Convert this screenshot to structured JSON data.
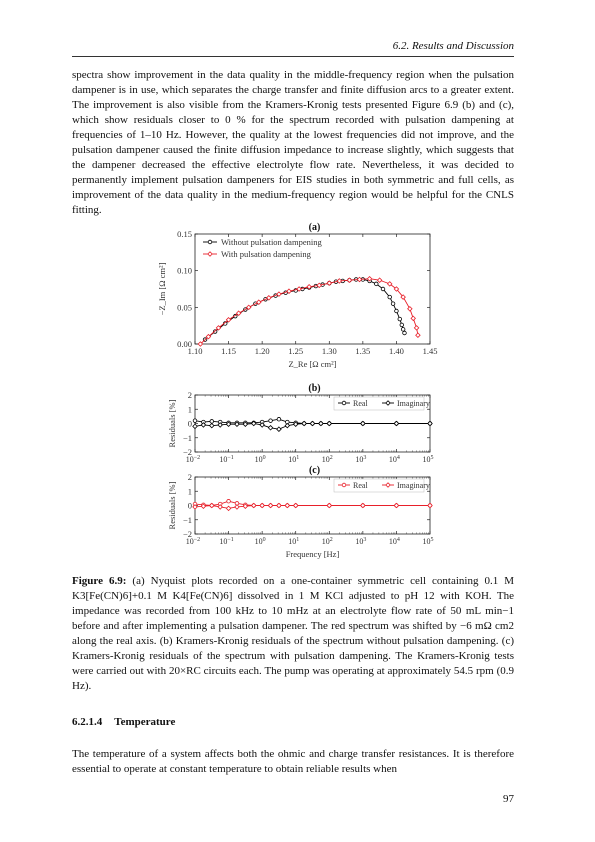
{
  "header": {
    "running_title": "6.2.  Results and Discussion"
  },
  "body": {
    "para1": "spectra show improvement in the data quality in the middle-frequency region when the pulsation dampener is in use, which separates the charge transfer and finite diffusion arcs to a greater extent. The improvement is also visible from the Kramers-Kronig tests presented Figure 6.9 (b) and (c), which show residuals closer to 0 % for the spectrum recorded with pulsation dampening at frequencies of 1–10 Hz. However, the quality at the lowest frequencies did not improve, and the pulsation dampener caused the finite diffusion impedance to increase slightly, which suggests that the dampener decreased the effective electrolyte flow rate. Nevertheless, it was decided to permanently implement pulsation dampeners for EIS studies in both symmetric and full cells, as improvement of the data quality in the medium-frequency region would be helpful for the CNLS fitting.",
    "para2": "The temperature of a system affects both the ohmic and charge transfer resistances. It is therefore essential to operate at constant temperature to obtain reliable results when"
  },
  "figure": {
    "caption_label": "Figure 6.9:",
    "caption_text": "(a) Nyquist plots recorded on a one-container symmetric cell containing 0.1 M K3[Fe(CN)6]+0.1 M K4[Fe(CN)6] dissolved in 1 M KCl adjusted to pH 12 with KOH. The impedance was recorded from 100 kHz to 10 mHz at an electrolyte flow rate of 50 mL min−1 before and after implementing a pulsation dampener. The red spectrum was shifted by −6 mΩ cm2 along the real axis. (b) Kramers-Kronig residuals of the spectrum without pulsation dampening. (c) Kramers-Kronig residuals of the spectrum with pulsation dampening. The Kramers-Kronig tests were carried out with 20×RC circuits each. The pump was operating at approximately 54.5 rpm (0.9 Hz)."
  },
  "section": {
    "number": "6.2.1.4",
    "title": "Temperature"
  },
  "page_number": "97",
  "colors": {
    "black_series": "#000000",
    "red_series": "#e8202a"
  },
  "chart_data": [
    {
      "type": "scatter",
      "panel_label": "(a)",
      "xlabel": "Z_Re [Ω cm²]",
      "ylabel": "−Z_Im [Ω cm²]",
      "xlim": [
        1.1,
        1.45
      ],
      "ylim": [
        0.0,
        0.15
      ],
      "xticks": [
        "1.10",
        "1.15",
        "1.20",
        "1.25",
        "1.30",
        "1.35",
        "1.40",
        "1.45"
      ],
      "yticks": [
        "0.00",
        "0.05",
        "0.10",
        "0.15"
      ],
      "legend_position": "top-left",
      "series": [
        {
          "name": "Without pulsation dampening",
          "color": "#000000",
          "marker": "circle",
          "x": [
            1.115,
            1.13,
            1.145,
            1.16,
            1.175,
            1.19,
            1.205,
            1.22,
            1.235,
            1.25,
            1.26,
            1.27,
            1.28,
            1.29,
            1.3,
            1.31,
            1.32,
            1.33,
            1.34,
            1.35,
            1.36,
            1.37,
            1.38,
            1.39,
            1.395,
            1.4,
            1.405,
            1.408,
            1.41,
            1.412
          ],
          "y": [
            0.006,
            0.017,
            0.028,
            0.038,
            0.047,
            0.055,
            0.061,
            0.066,
            0.07,
            0.073,
            0.075,
            0.077,
            0.079,
            0.081,
            0.083,
            0.085,
            0.086,
            0.087,
            0.088,
            0.088,
            0.086,
            0.082,
            0.075,
            0.064,
            0.055,
            0.045,
            0.034,
            0.026,
            0.02,
            0.015
          ]
        },
        {
          "name": "With pulsation dampening",
          "color": "#e8202a",
          "marker": "diamond",
          "x": [
            1.108,
            1.12,
            1.135,
            1.15,
            1.165,
            1.18,
            1.195,
            1.21,
            1.225,
            1.24,
            1.255,
            1.27,
            1.285,
            1.3,
            1.315,
            1.33,
            1.345,
            1.36,
            1.375,
            1.39,
            1.4,
            1.41,
            1.42,
            1.425,
            1.43,
            1.432
          ],
          "y": [
            0.0,
            0.01,
            0.022,
            0.033,
            0.042,
            0.05,
            0.057,
            0.063,
            0.068,
            0.072,
            0.075,
            0.078,
            0.08,
            0.083,
            0.086,
            0.087,
            0.088,
            0.089,
            0.087,
            0.082,
            0.075,
            0.064,
            0.048,
            0.035,
            0.022,
            0.012
          ]
        }
      ]
    },
    {
      "type": "line",
      "panel_label": "(b)",
      "xlabel": "",
      "ylabel": "Residuals [%]",
      "x_scale": "log",
      "xlim": [
        0.01,
        100000
      ],
      "ylim": [
        -2,
        2
      ],
      "xticks": [
        "10−2",
        "10−1",
        "100",
        "101",
        "102",
        "103",
        "104",
        "105"
      ],
      "yticks": [
        "−2",
        "−1",
        "0",
        "1",
        "2"
      ],
      "legend_position": "top-right",
      "series": [
        {
          "name": "Real",
          "color": "#000000",
          "marker": "circle",
          "x": [
            0.01,
            0.0178,
            0.0316,
            0.0562,
            0.1,
            0.178,
            0.316,
            0.562,
            1.0,
            1.78,
            3.16,
            5.62,
            10,
            17.8,
            31.6,
            56.2,
            100,
            1000,
            10000,
            100000
          ],
          "y": [
            0.2,
            0.1,
            0.15,
            0.1,
            0.05,
            0.05,
            0.05,
            0.05,
            0.1,
            0.2,
            0.3,
            0.1,
            0.05,
            0.0,
            0.0,
            0.0,
            0.0,
            0.0,
            0.0,
            0.0
          ]
        },
        {
          "name": "Imaginary",
          "color": "#000000",
          "marker": "diamond",
          "x": [
            0.01,
            0.0178,
            0.0316,
            0.0562,
            0.1,
            0.178,
            0.316,
            0.562,
            1.0,
            1.78,
            3.16,
            5.62,
            10,
            17.8,
            31.6,
            56.2,
            100,
            1000,
            10000,
            100000
          ],
          "y": [
            -0.2,
            -0.1,
            -0.15,
            -0.1,
            -0.05,
            -0.05,
            -0.05,
            0.0,
            -0.1,
            -0.3,
            -0.4,
            -0.15,
            -0.05,
            0.0,
            0.0,
            0.0,
            0.0,
            0.0,
            0.0,
            0.0
          ]
        }
      ]
    },
    {
      "type": "line",
      "panel_label": "(c)",
      "xlabel": "Frequency [Hz]",
      "ylabel": "Residuals [%]",
      "x_scale": "log",
      "xlim": [
        0.01,
        100000
      ],
      "ylim": [
        -2,
        2
      ],
      "xticks": [
        "10−2",
        "10−1",
        "100",
        "101",
        "102",
        "103",
        "104",
        "105"
      ],
      "yticks": [
        "−2",
        "−1",
        "0",
        "1",
        "2"
      ],
      "legend_position": "top-right",
      "series": [
        {
          "name": "Real",
          "color": "#e8202a",
          "marker": "circle",
          "x": [
            0.01,
            0.0178,
            0.0316,
            0.0562,
            0.1,
            0.178,
            0.316,
            0.562,
            1.0,
            1.78,
            3.16,
            5.62,
            10,
            100,
            1000,
            10000,
            100000
          ],
          "y": [
            0.1,
            0.05,
            0.0,
            0.1,
            0.3,
            0.15,
            0.05,
            0.0,
            0.0,
            0.0,
            0.0,
            0.0,
            0.0,
            0.0,
            0.0,
            0.0,
            0.0
          ]
        },
        {
          "name": "Imaginary",
          "color": "#e8202a",
          "marker": "diamond",
          "x": [
            0.01,
            0.0178,
            0.0316,
            0.0562,
            0.1,
            0.178,
            0.316,
            0.562,
            1.0,
            1.78,
            3.16,
            5.62,
            10,
            100,
            1000,
            10000,
            100000
          ],
          "y": [
            -0.1,
            -0.05,
            0.0,
            -0.1,
            -0.2,
            -0.1,
            -0.05,
            0.0,
            0.0,
            0.0,
            0.0,
            0.0,
            0.0,
            0.0,
            0.0,
            0.0,
            0.0
          ]
        }
      ]
    }
  ]
}
